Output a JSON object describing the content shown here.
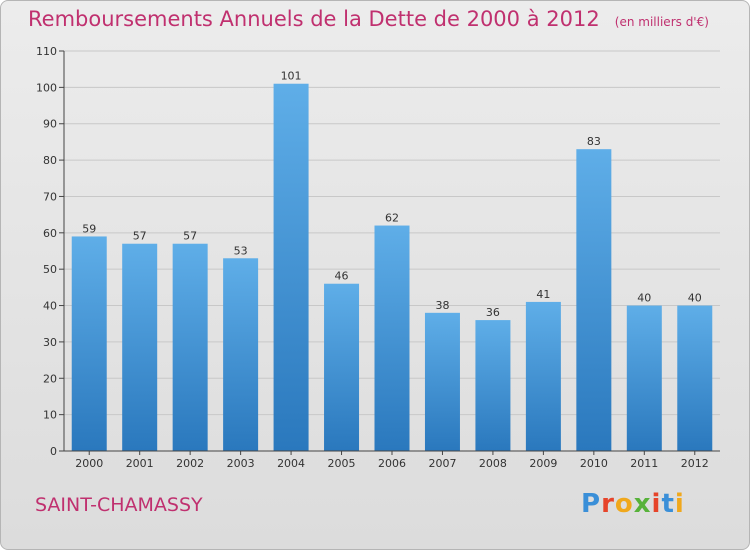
{
  "title": "Remboursements Annuels de la Dette de 2000 à 2012",
  "unit": "(en milliers d'€)",
  "town": "SAINT-CHAMASSY",
  "brand": {
    "text": "Proxiti",
    "letter_colors": [
      "#3a8fd8",
      "#e6442a",
      "#f0a81c",
      "#57b23a",
      "#e6442a",
      "#3a8fd8",
      "#f0a81c"
    ]
  },
  "colors": {
    "bar_top": "#5faee8",
    "bar_bottom": "#2a78bd",
    "title": "#c0306f",
    "grid": "#c8c8c8"
  },
  "chart_data": {
    "type": "bar",
    "categories": [
      "2000",
      "2001",
      "2002",
      "2003",
      "2004",
      "2005",
      "2006",
      "2007",
      "2008",
      "2009",
      "2010",
      "2011",
      "2012"
    ],
    "values": [
      59,
      57,
      57,
      53,
      101,
      46,
      62,
      38,
      36,
      41,
      83,
      40,
      40
    ],
    "ylim": [
      0,
      110
    ],
    "yticks": [
      0,
      10,
      20,
      30,
      40,
      50,
      60,
      70,
      80,
      90,
      100,
      110
    ],
    "grid": true,
    "title": "Remboursements Annuels de la Dette de 2000 à 2012",
    "xlabel": "",
    "ylabel": ""
  }
}
